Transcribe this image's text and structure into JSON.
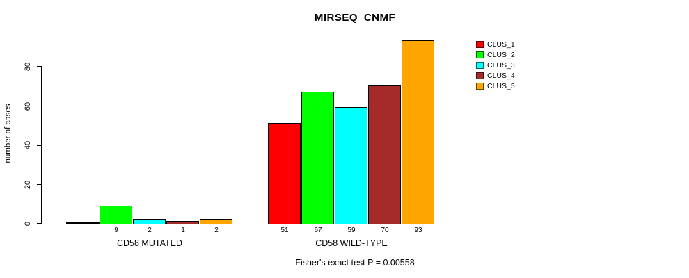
{
  "title": "MIRSEQ_CNMF",
  "subtitle": "Fisher's exact test P = 0.00558",
  "chart_data": {
    "type": "bar",
    "title": "MIRSEQ_CNMF",
    "xlabel": "",
    "ylabel": "number of cases",
    "yticks": [
      0,
      20,
      40,
      60,
      80
    ],
    "ylim": [
      0,
      80
    ],
    "grid": false,
    "legend_position": "top-right",
    "series": [
      {
        "name": "CLUS_1",
        "color": "#FF0000",
        "values": [
          0,
          51
        ]
      },
      {
        "name": "CLUS_2",
        "color": "#00FF00",
        "values": [
          9,
          67
        ]
      },
      {
        "name": "CLUS_3",
        "color": "#00FFFF",
        "values": [
          2,
          59
        ]
      },
      {
        "name": "CLUS_4",
        "color": "#A52A2A",
        "values": [
          1,
          70
        ]
      },
      {
        "name": "CLUS_5",
        "color": "#FFA500",
        "values": [
          2,
          93
        ]
      }
    ],
    "groups": [
      {
        "label": "CD58 MUTATED",
        "values": [
          0,
          9,
          2,
          1,
          2
        ],
        "bar_labels": [
          "",
          "9",
          "2",
          "1",
          "2"
        ]
      },
      {
        "label": "CD58 WILD-TYPE",
        "values": [
          51,
          67,
          59,
          70,
          93
        ],
        "bar_labels": [
          "51",
          "67",
          "59",
          "70",
          "93"
        ]
      }
    ],
    "annotation": "Fisher's exact test P = 0.00558"
  }
}
